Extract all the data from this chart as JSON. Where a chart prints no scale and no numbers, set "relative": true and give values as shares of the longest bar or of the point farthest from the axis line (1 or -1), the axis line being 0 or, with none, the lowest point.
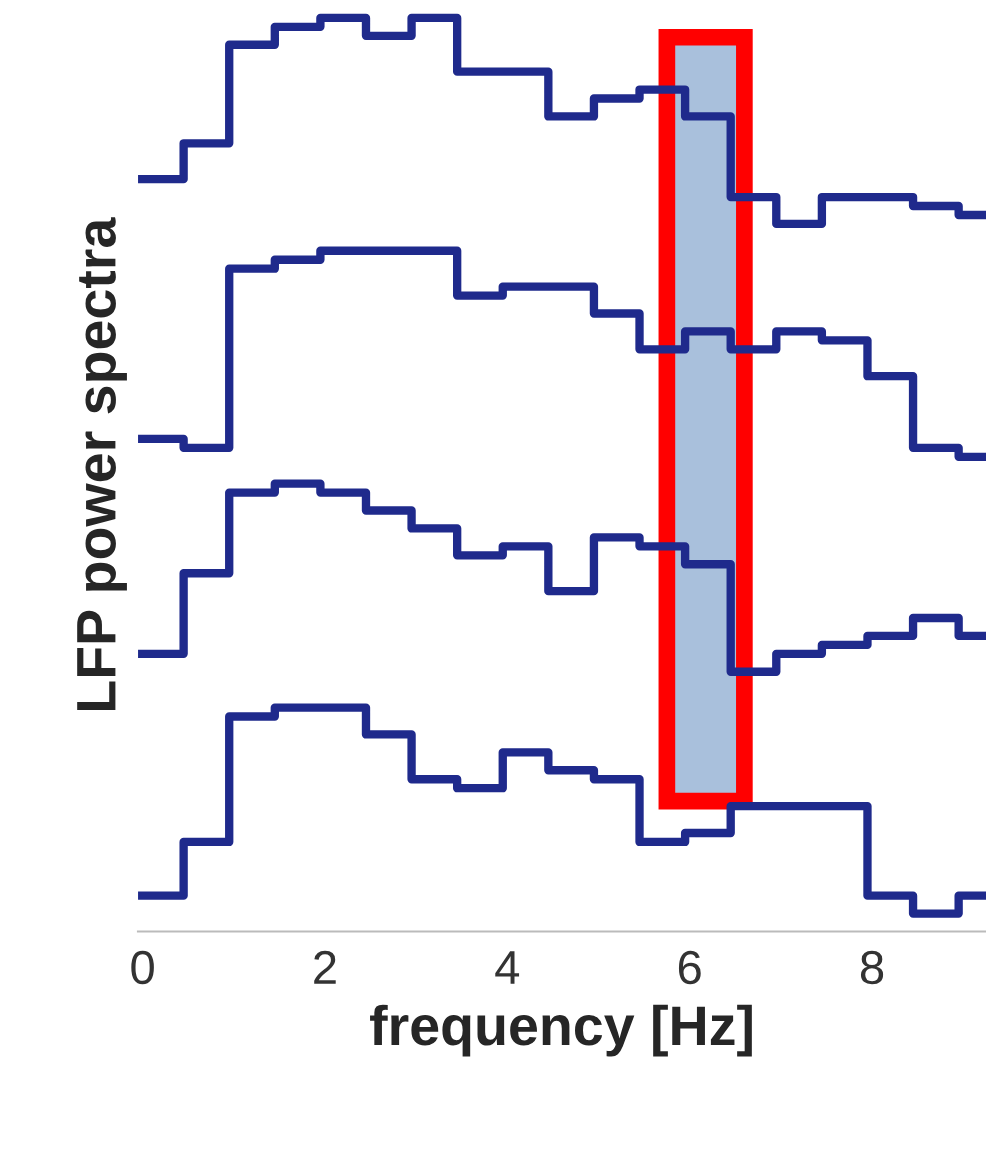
{
  "chart_data": {
    "type": "step",
    "relative": true,
    "xlabel": "frequency [Hz]",
    "ylabel": "LFP power spectra",
    "x": [
      -0.05,
      0.45,
      0.95,
      1.45,
      1.95,
      2.45,
      2.95,
      3.45,
      3.95,
      4.45,
      4.95,
      5.45,
      5.95,
      6.45,
      6.95,
      7.45,
      7.95,
      8.45,
      8.95,
      9.25
    ],
    "xlim": [
      -0.05,
      9.25
    ],
    "xticks": [
      0,
      2,
      4,
      6,
      8
    ],
    "series": [
      {
        "color": "#1f2a8c",
        "values": [
          0.82,
          0.86,
          0.97,
          0.99,
          1.0,
          0.98,
          1.0,
          0.94,
          0.94,
          0.89,
          0.91,
          0.92,
          0.89,
          0.8,
          0.77,
          0.8,
          0.8,
          0.79,
          0.78,
          0.78
        ]
      },
      {
        "color": "#1f2a8c",
        "values": [
          0.53,
          0.52,
          0.72,
          0.73,
          0.74,
          0.74,
          0.74,
          0.69,
          0.7,
          0.7,
          0.67,
          0.63,
          0.65,
          0.63,
          0.65,
          0.64,
          0.6,
          0.52,
          0.51,
          0.51
        ]
      },
      {
        "color": "#1f2a8c",
        "values": [
          0.29,
          0.38,
          0.47,
          0.48,
          0.47,
          0.45,
          0.43,
          0.4,
          0.41,
          0.36,
          0.42,
          0.41,
          0.39,
          0.27,
          0.29,
          0.3,
          0.31,
          0.33,
          0.31,
          0.31
        ]
      },
      {
        "color": "#1f2a8c",
        "values": [
          0.02,
          0.08,
          0.22,
          0.23,
          0.23,
          0.2,
          0.15,
          0.14,
          0.18,
          0.16,
          0.15,
          0.08,
          0.09,
          0.12,
          0.12,
          0.12,
          0.02,
          0.0,
          0.02,
          0.02
        ]
      }
    ],
    "bands": [
      {
        "axis": "x",
        "from": 5.75,
        "to": 6.6,
        "color": "#a9c0dc"
      }
    ],
    "grid": false,
    "legend": false
  }
}
